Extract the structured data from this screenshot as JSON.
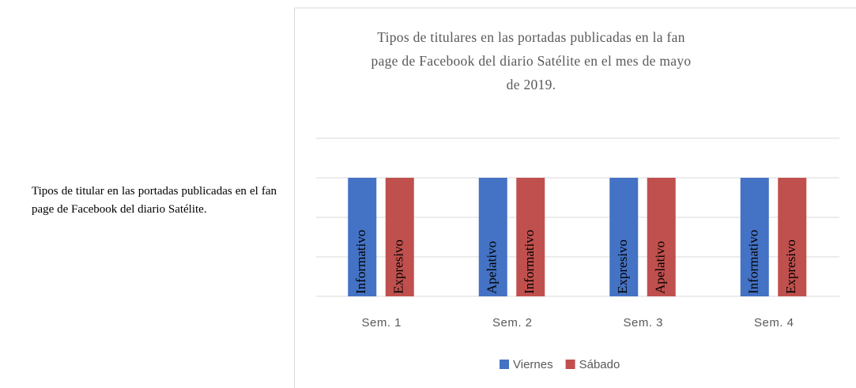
{
  "caption": "Tipos de titular en las portadas publicadas en el fan page de Facebook del diario Satélite.",
  "chart_data": {
    "type": "bar",
    "title": "Tipos de titulares en las portadas publicadas en la fan page de Facebook del diario Satélite en el mes de mayo de 2019.",
    "categories": [
      "Sem. 1",
      "Sem. 2",
      "Sem. 3",
      "Sem. 4"
    ],
    "series": [
      {
        "name": "Viernes",
        "color": "#4472c4",
        "values": [
          3,
          3,
          3,
          3
        ],
        "labels": [
          "Informativo",
          "Apelativo",
          "Expresivo",
          "Informativo"
        ]
      },
      {
        "name": "Sábado",
        "color": "#c0504d",
        "values": [
          3,
          3,
          3,
          3
        ],
        "labels": [
          "Expresivo",
          "Informativo",
          "Apelativo",
          "Expresivo"
        ]
      }
    ],
    "ylim": [
      0,
      4
    ],
    "yticks": [
      0,
      1,
      2,
      3,
      4
    ],
    "grid": true,
    "legend": "bottom"
  }
}
